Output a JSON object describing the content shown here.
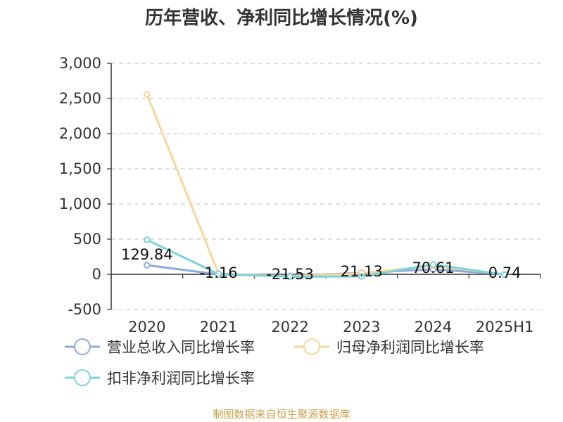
{
  "title": "历年营收、净利同比增长情况(%)",
  "source": "制图数据来自恒生聚源数据库",
  "chart_data": {
    "type": "line",
    "categories": [
      "2020",
      "2021",
      "2022",
      "2023",
      "2024",
      "2025H1"
    ],
    "ylim": [
      -500,
      3000
    ],
    "yticks": [
      -500,
      0,
      500,
      1000,
      1500,
      2000,
      2500,
      3000
    ],
    "ytick_labels": [
      "-500",
      "0",
      "500",
      "1,000",
      "1,500",
      "2,000",
      "2,500",
      "3,000"
    ],
    "grid": true,
    "legend_position": "bottom",
    "series": [
      {
        "name": "营业总收入同比增长率",
        "color": "#8fa8d8",
        "values": [
          129.84,
          -1.16,
          -21.53,
          21.13,
          70.61,
          0.74
        ],
        "data_labels": [
          "129.84",
          "-1.16",
          "-21.53",
          "21.13",
          "70.61",
          "0.74"
        ]
      },
      {
        "name": "归母净利润同比增长率",
        "color": "#f7d79a",
        "values": [
          2560,
          10,
          -30,
          15,
          120,
          0
        ]
      },
      {
        "name": "扣非净利润同比增长率",
        "color": "#7fd3d8",
        "values": [
          490,
          5,
          -35,
          -30,
          140,
          -5
        ]
      }
    ]
  }
}
